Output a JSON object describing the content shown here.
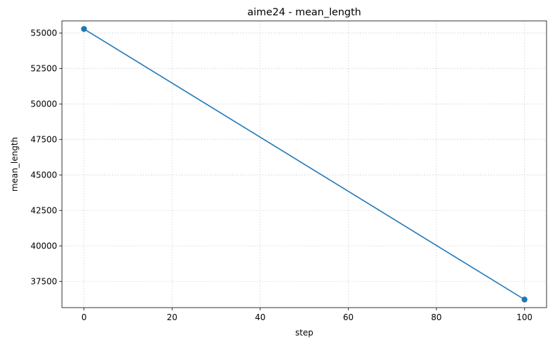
{
  "chart_data": {
    "type": "line",
    "title": "aime24 - mean_length",
    "xlabel": "step",
    "ylabel": "mean_length",
    "xlim": [
      -5,
      105
    ],
    "ylim": [
      35650,
      55850
    ],
    "xticks": [
      0,
      20,
      40,
      60,
      80,
      100
    ],
    "yticks": [
      37500,
      40000,
      42500,
      45000,
      47500,
      50000,
      52500,
      55000
    ],
    "grid": true,
    "legend": "none",
    "series": [
      {
        "color": "#1f77b4",
        "marker": "circle",
        "x": [
          0,
          100
        ],
        "y": [
          55280,
          36220
        ]
      }
    ]
  }
}
